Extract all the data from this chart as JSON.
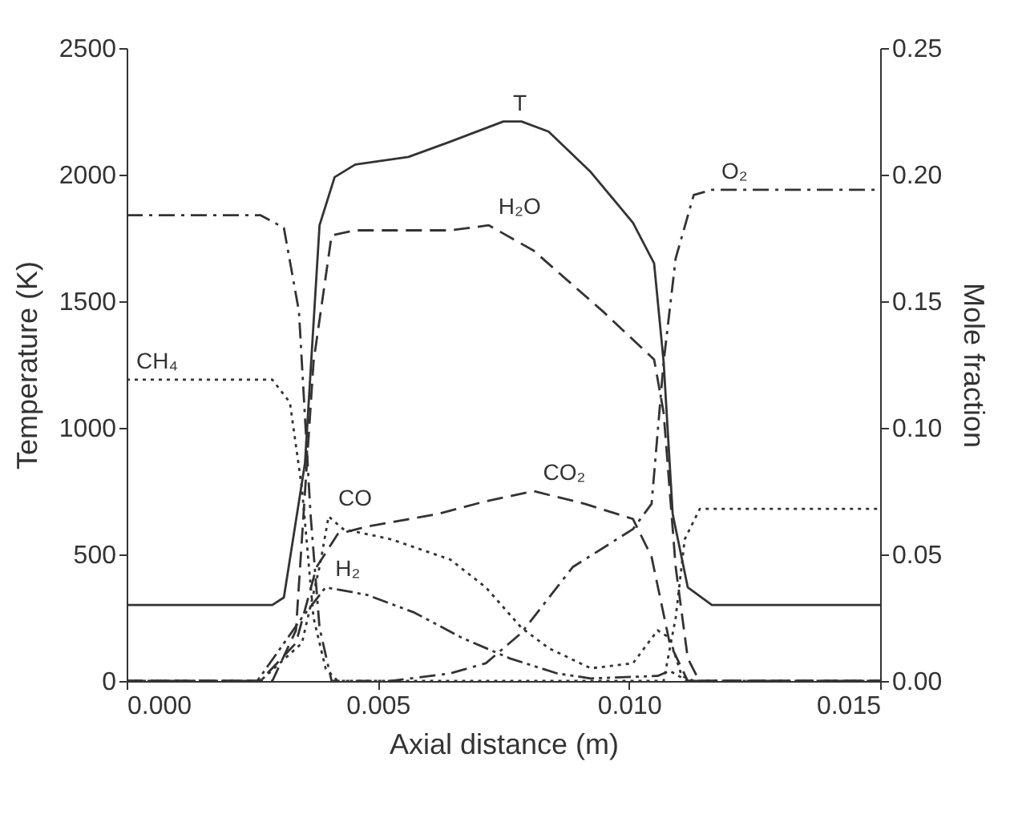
{
  "chart_data": {
    "type": "line",
    "xlabel": "Axial distance (m)",
    "ylabel": "Temperature (K)",
    "y2label": "Mole fraction",
    "xlim": [
      0,
      0.015
    ],
    "xticks": [
      {
        "value": 0,
        "label": "0.000"
      },
      {
        "value": 0.005,
        "label": "0.005"
      },
      {
        "value": 0.01,
        "label": "0.010"
      },
      {
        "value": 0.015,
        "label": "0.015"
      }
    ],
    "ylim": [
      0,
      2500
    ],
    "yticks": [
      0,
      500,
      1000,
      1500,
      2000,
      2500
    ],
    "y2lim": [
      0,
      0.25
    ],
    "y2ticks": [
      {
        "value": 0,
        "label": "0.00"
      },
      {
        "value": 0.05,
        "label": "0.05"
      },
      {
        "value": 0.1,
        "label": "0.10"
      },
      {
        "value": 0.15,
        "label": "0.15"
      },
      {
        "value": 0.2,
        "label": "0.20"
      },
      {
        "value": 0.25,
        "label": "0.25"
      }
    ],
    "grid": false,
    "series": [
      {
        "name": "T",
        "color": "#333333",
        "line_style": "solid",
        "x": [
          0,
          0.0029,
          0.00313,
          0.00355,
          0.00384,
          0.00414,
          0.00455,
          0.00561,
          0.00644,
          0.0075,
          0.00786,
          0.0084,
          0.00924,
          0.01008,
          0.0105,
          0.01069,
          0.01087,
          0.01117,
          0.01165,
          0.015
        ],
        "values": [
          300,
          300,
          330,
          860,
          1800,
          1990,
          2040,
          2070,
          2130,
          2210,
          2210,
          2170,
          2010,
          1810,
          1650,
          1260,
          660,
          370,
          300,
          300
        ]
      },
      {
        "name": "H₂O",
        "axis": "y2",
        "color": "#333333",
        "line_style": "dashed",
        "x": [
          0,
          0.0029,
          0.00337,
          0.00372,
          0.00408,
          0.00455,
          0.00644,
          0.00721,
          0.0081,
          0.00948,
          0.0105,
          0.01069,
          0.01093,
          0.01117,
          0.0114,
          0.015
        ],
        "values": [
          0,
          0,
          0.02,
          0.126,
          0.176,
          0.178,
          0.178,
          0.18,
          0.17,
          0.146,
          0.127,
          0.106,
          0.045,
          0.009,
          0,
          0
        ]
      },
      {
        "name": "O₂",
        "axis": "y2",
        "color": "#333333",
        "line_style": "dashdot",
        "x": [
          0,
          0.00266,
          0.00313,
          0.00343,
          0.00366,
          0.00384,
          0.00408,
          0.00526,
          0.00644,
          0.00715,
          0.00786,
          0.00888,
          0.01008,
          0.01045,
          0.01069,
          0.01093,
          0.01129,
          0.01165,
          0.015
        ],
        "values": [
          0.184,
          0.184,
          0.179,
          0.146,
          0.066,
          0.021,
          0,
          0,
          0.003,
          0.007,
          0.019,
          0.045,
          0.06,
          0.07,
          0.126,
          0.167,
          0.192,
          0.194,
          0.194
        ]
      },
      {
        "name": "CH₄",
        "axis": "y2",
        "color": "#333333",
        "line_style": "dotted",
        "x": [
          0,
          0.0029,
          0.00325,
          0.00349,
          0.00372,
          0.00396,
          0.0042,
          0.01069,
          0.01093,
          0.01111,
          0.01141,
          0.0118,
          0.015
        ],
        "values": [
          0.119,
          0.119,
          0.11,
          0.076,
          0.025,
          0.005,
          0,
          0,
          0.025,
          0.056,
          0.068,
          0.068,
          0.068
        ]
      },
      {
        "name": "CO₂",
        "axis": "y2",
        "color": "#333333",
        "line_style": "dashed",
        "x": [
          0,
          0.00266,
          0.00337,
          0.00378,
          0.0042,
          0.00479,
          0.0062,
          0.00715,
          0.0081,
          0.00912,
          0.01008,
          0.01045,
          0.01081,
          0.01117,
          0.015
        ],
        "values": [
          0,
          0,
          0.015,
          0.045,
          0.058,
          0.061,
          0.066,
          0.071,
          0.075,
          0.07,
          0.064,
          0.049,
          0.015,
          0,
          0
        ]
      },
      {
        "name": "CO",
        "axis": "y2",
        "color": "#333333",
        "line_style": "dotted",
        "x": [
          0,
          0.00266,
          0.00349,
          0.00384,
          0.00402,
          0.00431,
          0.00526,
          0.00644,
          0.00715,
          0.00786,
          0.0084,
          0.00924,
          0.01008,
          0.01057,
          0.01081,
          0.01105,
          0.01129,
          0.015
        ],
        "values": [
          0,
          0,
          0.015,
          0.045,
          0.065,
          0.06,
          0.056,
          0.048,
          0.037,
          0.021,
          0.013,
          0.005,
          0.007,
          0.02,
          0.017,
          0.002,
          0,
          0
        ]
      },
      {
        "name": "H₂",
        "axis": "y2",
        "color": "#333333",
        "line_style": "dashdotdot",
        "x": [
          0,
          0.0026,
          0.00349,
          0.00396,
          0.00479,
          0.00573,
          0.00668,
          0.00762,
          0.00857,
          0.00924,
          0.01057,
          0.01081,
          0.01117,
          0.015
        ],
        "values": [
          0,
          0,
          0.025,
          0.037,
          0.034,
          0.027,
          0.017,
          0.009,
          0.003,
          0.001,
          0.002,
          0.004,
          0,
          0
        ]
      }
    ]
  }
}
